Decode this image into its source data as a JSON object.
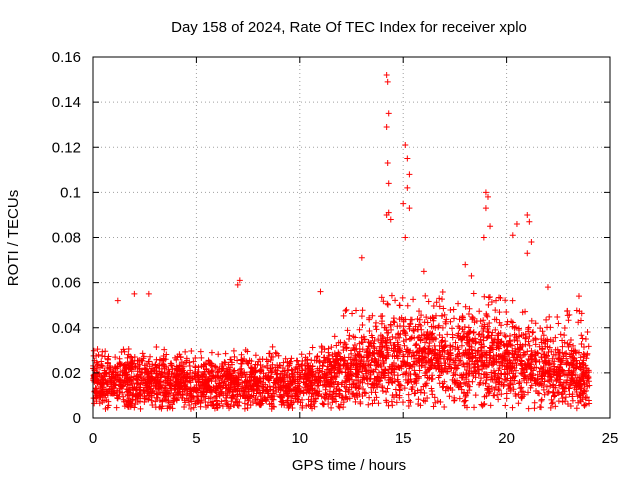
{
  "chart_data": {
    "type": "scatter",
    "title": "Day 158 of 2024, Rate Of TEC Index for receiver xplo",
    "xlabel": "GPS time / hours",
    "ylabel": "ROTI / TECUs",
    "xlim": [
      0,
      25
    ],
    "ylim": [
      0,
      0.16
    ],
    "xticks": [
      0,
      5,
      10,
      15,
      20,
      25
    ],
    "xtick_labels": [
      "0",
      "5",
      "10",
      "15",
      "20",
      "25"
    ],
    "yticks": [
      0,
      0.02,
      0.04,
      0.06,
      0.08,
      0.1,
      0.12,
      0.14,
      0.16
    ],
    "ytick_labels": [
      "0",
      "0.02",
      "0.04",
      "0.06",
      "0.08",
      "0.1",
      "0.12",
      "0.14",
      "0.16"
    ],
    "grid": true,
    "marker": "+",
    "color": "#ff0000",
    "data_extent": [
      0,
      24
    ],
    "baseline_profile": [
      [
        0,
        0.017
      ],
      [
        6,
        0.015
      ],
      [
        10,
        0.016
      ],
      [
        11.5,
        0.018
      ],
      [
        12.5,
        0.022
      ],
      [
        14.5,
        0.025
      ],
      [
        17,
        0.026
      ],
      [
        19,
        0.025
      ],
      [
        21,
        0.022
      ],
      [
        24,
        0.017
      ]
    ],
    "outliers": [
      {
        "x": 1.2,
        "y": 0.052
      },
      {
        "x": 2.0,
        "y": 0.055
      },
      {
        "x": 2.7,
        "y": 0.055
      },
      {
        "x": 7.0,
        "y": 0.059
      },
      {
        "x": 7.1,
        "y": 0.061
      },
      {
        "x": 11.0,
        "y": 0.056
      },
      {
        "x": 13.0,
        "y": 0.071
      },
      {
        "x": 14.2,
        "y": 0.152
      },
      {
        "x": 14.25,
        "y": 0.149
      },
      {
        "x": 14.3,
        "y": 0.135
      },
      {
        "x": 14.2,
        "y": 0.129
      },
      {
        "x": 14.25,
        "y": 0.113
      },
      {
        "x": 14.3,
        "y": 0.104
      },
      {
        "x": 14.3,
        "y": 0.091
      },
      {
        "x": 14.2,
        "y": 0.09
      },
      {
        "x": 14.4,
        "y": 0.088
      },
      {
        "x": 15.1,
        "y": 0.121
      },
      {
        "x": 15.2,
        "y": 0.115
      },
      {
        "x": 15.3,
        "y": 0.108
      },
      {
        "x": 15.2,
        "y": 0.102
      },
      {
        "x": 15.0,
        "y": 0.095
      },
      {
        "x": 15.1,
        "y": 0.08
      },
      {
        "x": 15.3,
        "y": 0.093
      },
      {
        "x": 19.0,
        "y": 0.1
      },
      {
        "x": 19.1,
        "y": 0.098
      },
      {
        "x": 19.0,
        "y": 0.093
      },
      {
        "x": 19.2,
        "y": 0.085
      },
      {
        "x": 18.9,
        "y": 0.08
      },
      {
        "x": 20.5,
        "y": 0.086
      },
      {
        "x": 20.3,
        "y": 0.081
      },
      {
        "x": 21.0,
        "y": 0.09
      },
      {
        "x": 21.1,
        "y": 0.087
      },
      {
        "x": 21.2,
        "y": 0.078
      },
      {
        "x": 21.0,
        "y": 0.073
      },
      {
        "x": 23.5,
        "y": 0.054
      },
      {
        "x": 18.0,
        "y": 0.068
      },
      {
        "x": 18.3,
        "y": 0.063
      },
      {
        "x": 16.0,
        "y": 0.065
      },
      {
        "x": 22.0,
        "y": 0.058
      }
    ]
  }
}
